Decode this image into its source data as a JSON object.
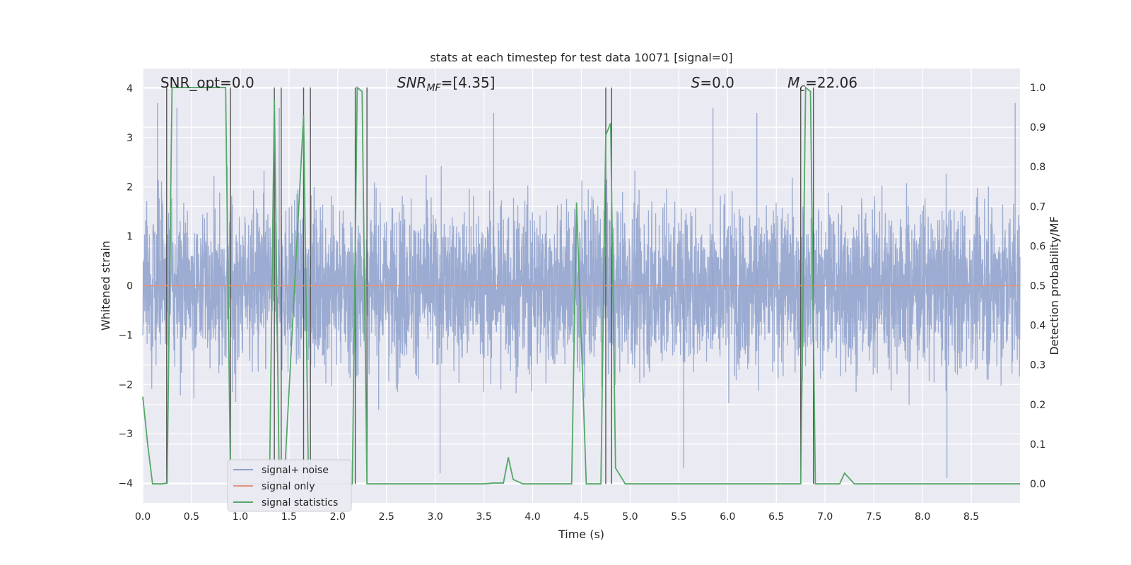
{
  "chart_data": {
    "type": "line",
    "title": "stats at each timestep for test data 10071 [signal=0]",
    "xlabel": "Time (s)",
    "ylabel": "Whitened strain",
    "y2label": "Detection probability/MF",
    "xlim": [
      0.0,
      9.0
    ],
    "ylim": [
      -4.4,
      4.4
    ],
    "y2lim": [
      -0.048,
      1.048
    ],
    "grid": true,
    "x_ticks": [
      0.0,
      0.5,
      1.0,
      1.5,
      2.0,
      2.5,
      3.0,
      3.5,
      4.0,
      4.5,
      5.0,
      5.5,
      6.0,
      6.5,
      7.0,
      7.5,
      8.0,
      8.5
    ],
    "x_tick_labels": [
      "0.0",
      "0.5",
      "1.0",
      "1.5",
      "2.0",
      "2.5",
      "3.0",
      "3.5",
      "4.0",
      "4.5",
      "5.0",
      "5.5",
      "6.0",
      "6.5",
      "7.0",
      "7.5",
      "8.0",
      "8.5"
    ],
    "y_ticks": [
      -4,
      -3,
      -2,
      -1,
      0,
      1,
      2,
      3,
      4
    ],
    "y_tick_labels": [
      "−4",
      "−3",
      "−2",
      "−1",
      "0",
      "1",
      "2",
      "3",
      "4"
    ],
    "y2_ticks": [
      0.0,
      0.1,
      0.2,
      0.3,
      0.4,
      0.5,
      0.6,
      0.7,
      0.8,
      0.9,
      1.0
    ],
    "y2_tick_labels": [
      "0.0",
      "0.1",
      "0.2",
      "0.3",
      "0.4",
      "0.5",
      "0.6",
      "0.7",
      "0.8",
      "0.9",
      "1.0"
    ],
    "annotations": [
      {
        "text": "SNR_opt=0.0",
        "x_axes": 0.02
      },
      {
        "text": "SNR",
        "sub": "MF",
        "suffix": "=[4.35]",
        "italic": true,
        "x_axes": 0.29
      },
      {
        "text": "S",
        "suffix": "=0.0",
        "italic": true,
        "x_axes": 0.625
      },
      {
        "text": "M",
        "sub": "c",
        "suffix": "=22.06",
        "italic": true,
        "x_axes": 0.735
      }
    ],
    "legend": {
      "placement": "lower-left",
      "entries": [
        {
          "label": "signal+ noise",
          "color": "#8da0cb"
        },
        {
          "label": "signal only",
          "color": "#e1937d"
        },
        {
          "label": "signal statistics",
          "color": "#55a868"
        }
      ]
    },
    "series": [
      {
        "name": "signal+ noise",
        "axis": "left",
        "color": "#8da0cb",
        "description_values": "noise samples, amplitude roughly within ±2.5 with excursions to ±3.8",
        "noise_envelope": {
          "x": [
            0.0,
            9.0
          ],
          "typical_abs": 1.6,
          "max_abs": 3.8
        },
        "spikes": [
          {
            "x": 0.15,
            "y": 3.7
          },
          {
            "x": 0.35,
            "y": 3.6
          },
          {
            "x": 1.4,
            "y": 3.6
          },
          {
            "x": 3.05,
            "y": -3.8
          },
          {
            "x": 3.6,
            "y": 3.5
          },
          {
            "x": 5.55,
            "y": -3.7
          },
          {
            "x": 5.85,
            "y": 3.6
          },
          {
            "x": 6.3,
            "y": 3.5
          },
          {
            "x": 8.25,
            "y": -3.9
          },
          {
            "x": 8.95,
            "y": 3.7
          }
        ]
      },
      {
        "name": "signal only",
        "axis": "left",
        "color": "#e1937d",
        "x": [
          0.0,
          9.0
        ],
        "y": [
          0.0,
          0.0
        ]
      },
      {
        "name": "signal statistics",
        "axis": "right",
        "color": "#55a868",
        "x": [
          0.0,
          0.05,
          0.1,
          0.2,
          0.25,
          0.3,
          0.85,
          0.9,
          1.3,
          1.35,
          1.4,
          1.45,
          1.65,
          1.7,
          1.75,
          2.15,
          2.2,
          2.25,
          2.3,
          2.35,
          2.4,
          3.5,
          3.6,
          3.7,
          3.75,
          3.8,
          3.9,
          4.4,
          4.45,
          4.55,
          4.7,
          4.75,
          4.8,
          4.85,
          4.95,
          6.75,
          6.8,
          6.85,
          6.9,
          6.95,
          7.1,
          7.15,
          7.2,
          7.3,
          9.0
        ],
        "y": [
          0.22,
          0.1,
          0.0,
          0.0,
          0.002,
          1.0,
          1.0,
          0.0,
          0.0,
          0.97,
          0.0,
          0.0,
          0.93,
          0.0,
          0.0,
          0.0,
          1.0,
          0.99,
          0.0,
          0.0,
          0.0,
          0.0,
          0.002,
          0.002,
          0.067,
          0.011,
          0.0,
          0.0,
          0.71,
          0.0,
          0.0,
          0.88,
          0.91,
          0.04,
          0.0,
          0.0,
          1.0,
          0.99,
          0.0,
          0.0,
          0.0,
          0.0,
          0.027,
          0.0,
          0.0
        ]
      }
    ],
    "vertical_markers": [
      0.245,
      0.9,
      1.35,
      1.42,
      1.65,
      1.72,
      2.18,
      2.3,
      4.75,
      4.81,
      6.75,
      6.88
    ]
  }
}
